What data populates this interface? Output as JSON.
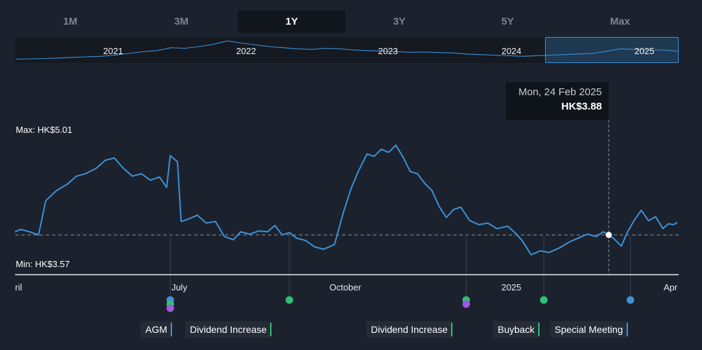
{
  "range_buttons": [
    {
      "label": "1M",
      "active": false
    },
    {
      "label": "3M",
      "active": false
    },
    {
      "label": "1Y",
      "active": true
    },
    {
      "label": "3Y",
      "active": false
    },
    {
      "label": "5Y",
      "active": false
    },
    {
      "label": "Max",
      "active": false
    }
  ],
  "navigator": {
    "years": [
      "2021",
      "2022",
      "2023",
      "2024",
      "2025"
    ]
  },
  "tooltip": {
    "date": "Mon, 24 Feb 2025",
    "price": "HK$3.88"
  },
  "stats": {
    "max_label": "Max: HK$5.01",
    "min_label": "Min: HK$3.57"
  },
  "chart_data": {
    "type": "line",
    "currency": "HK$",
    "x_range": [
      "2024-04-01",
      "2025-04-03"
    ],
    "y_range": [
      3.57,
      5.01
    ],
    "max": 5.01,
    "min": 3.57,
    "reference_price": 3.88,
    "x_ticks": [
      "ril",
      "July",
      "October",
      "2025",
      "Apr"
    ],
    "series": [
      {
        "color": "#3d92d9",
        "points": [
          [
            "2024-04-01",
            3.92
          ],
          [
            "2024-04-04",
            3.95
          ],
          [
            "2024-04-09",
            3.92
          ],
          [
            "2024-04-14",
            3.88
          ],
          [
            "2024-04-18",
            4.31
          ],
          [
            "2024-04-24",
            4.44
          ],
          [
            "2024-04-30",
            4.52
          ],
          [
            "2024-05-05",
            4.62
          ],
          [
            "2024-05-10",
            4.65
          ],
          [
            "2024-05-16",
            4.72
          ],
          [
            "2024-05-21",
            4.82
          ],
          [
            "2024-05-26",
            4.85
          ],
          [
            "2024-05-31",
            4.72
          ],
          [
            "2024-06-05",
            4.62
          ],
          [
            "2024-06-10",
            4.65
          ],
          [
            "2024-06-15",
            4.57
          ],
          [
            "2024-06-20",
            4.61
          ],
          [
            "2024-06-24",
            4.48
          ],
          [
            "2024-06-26",
            4.88
          ],
          [
            "2024-06-30",
            4.8
          ],
          [
            "2024-07-02",
            4.05
          ],
          [
            "2024-07-06",
            4.08
          ],
          [
            "2024-07-11",
            4.13
          ],
          [
            "2024-07-16",
            4.03
          ],
          [
            "2024-07-21",
            4.05
          ],
          [
            "2024-07-26",
            3.86
          ],
          [
            "2024-07-31",
            3.82
          ],
          [
            "2024-08-04",
            3.92
          ],
          [
            "2024-08-09",
            3.89
          ],
          [
            "2024-08-14",
            3.93
          ],
          [
            "2024-08-19",
            3.92
          ],
          [
            "2024-08-23",
            4.0
          ],
          [
            "2024-08-27",
            3.88
          ],
          [
            "2024-08-31",
            3.91
          ],
          [
            "2024-09-04",
            3.84
          ],
          [
            "2024-09-09",
            3.81
          ],
          [
            "2024-09-14",
            3.73
          ],
          [
            "2024-09-19",
            3.7
          ],
          [
            "2024-09-25",
            3.76
          ],
          [
            "2024-09-30",
            4.17
          ],
          [
            "2024-10-04",
            4.45
          ],
          [
            "2024-10-08",
            4.67
          ],
          [
            "2024-10-13",
            4.9
          ],
          [
            "2024-10-17",
            4.87
          ],
          [
            "2024-10-21",
            4.96
          ],
          [
            "2024-10-25",
            4.92
          ],
          [
            "2024-10-29",
            5.01
          ],
          [
            "2024-11-02",
            4.86
          ],
          [
            "2024-11-06",
            4.68
          ],
          [
            "2024-11-10",
            4.65
          ],
          [
            "2024-11-14",
            4.53
          ],
          [
            "2024-11-18",
            4.44
          ],
          [
            "2024-11-22",
            4.24
          ],
          [
            "2024-11-26",
            4.1
          ],
          [
            "2024-11-30",
            4.2
          ],
          [
            "2024-12-04",
            4.23
          ],
          [
            "2024-12-09",
            4.06
          ],
          [
            "2024-12-14",
            4.01
          ],
          [
            "2024-12-19",
            4.03
          ],
          [
            "2024-12-24",
            3.96
          ],
          [
            "2024-12-30",
            3.99
          ],
          [
            "2025-01-03",
            3.91
          ],
          [
            "2025-01-07",
            3.81
          ],
          [
            "2025-01-12",
            3.63
          ],
          [
            "2025-01-17",
            3.68
          ],
          [
            "2025-01-22",
            3.66
          ],
          [
            "2025-01-28",
            3.72
          ],
          [
            "2025-02-02",
            3.79
          ],
          [
            "2025-02-07",
            3.84
          ],
          [
            "2025-02-12",
            3.89
          ],
          [
            "2025-02-17",
            3.86
          ],
          [
            "2025-02-21",
            3.92
          ],
          [
            "2025-02-24",
            3.88
          ],
          [
            "2025-02-27",
            3.83
          ],
          [
            "2025-03-03",
            3.74
          ],
          [
            "2025-03-06",
            3.9
          ],
          [
            "2025-03-10",
            4.06
          ],
          [
            "2025-03-14",
            4.19
          ],
          [
            "2025-03-18",
            4.06
          ],
          [
            "2025-03-22",
            4.11
          ],
          [
            "2025-03-26",
            3.96
          ],
          [
            "2025-03-29",
            4.02
          ],
          [
            "2025-04-01",
            4.01
          ],
          [
            "2025-04-03",
            4.04
          ]
        ]
      }
    ],
    "events": [
      {
        "label": "AGM",
        "date": "2024-06-26",
        "color": "#3d92d9"
      },
      {
        "label": "Dividend Increase",
        "date": "2024-08-31",
        "color": "#2fc171"
      },
      {
        "label": "Dividend Increase",
        "date": "2024-12-07",
        "color": "#2fc171"
      },
      {
        "label": "Buyback",
        "date": "2025-01-19",
        "color": "#2fc171"
      },
      {
        "label": "Special Meeting",
        "date": "2025-03-08",
        "color": "#3d92d9"
      }
    ]
  },
  "navigator_series": [
    3.6,
    3.62,
    3.65,
    3.7,
    3.75,
    3.8,
    3.85,
    3.95,
    4.1,
    4.25,
    4.35,
    4.6,
    4.55,
    4.7,
    4.9,
    5.2,
    5.0,
    4.85,
    4.7,
    4.6,
    4.5,
    4.45,
    4.55,
    4.5,
    4.4,
    4.35,
    4.3,
    4.25,
    4.2,
    4.22,
    4.18,
    4.15,
    4.05,
    4.0,
    3.95,
    3.9,
    3.85,
    3.9,
    3.95,
    4.0,
    4.05,
    4.1,
    4.3,
    4.5,
    4.45,
    4.4,
    4.4,
    4.3
  ]
}
